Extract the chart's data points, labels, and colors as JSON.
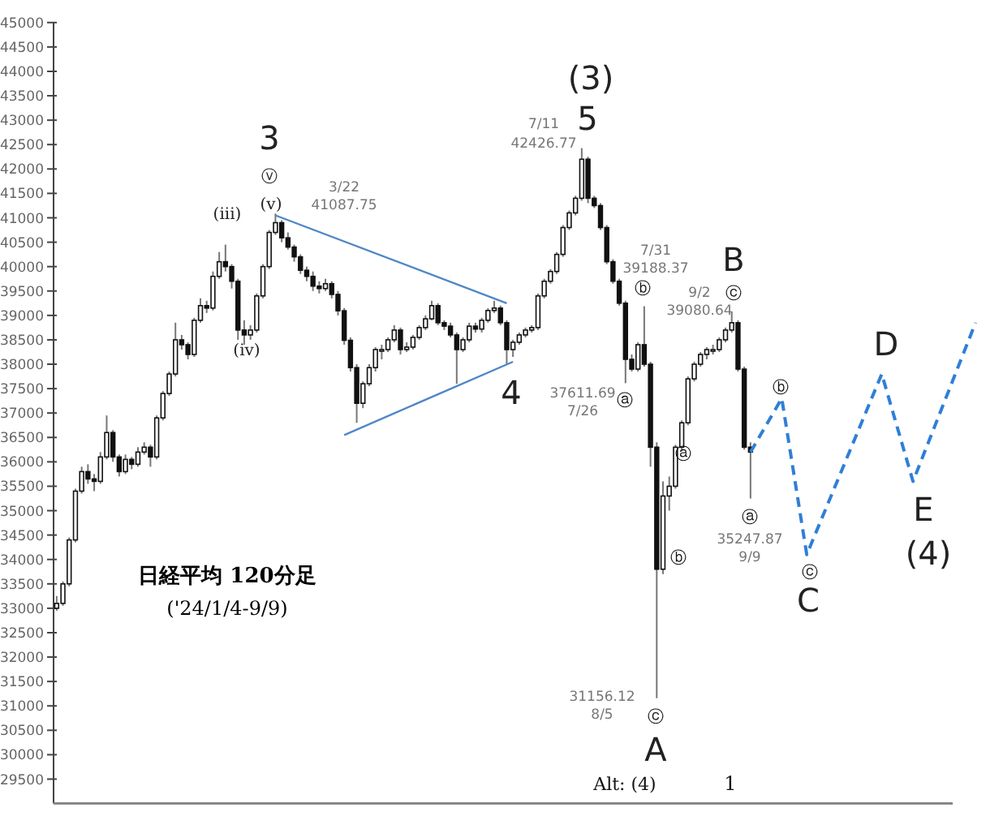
{
  "chart_data": {
    "type": "candlestick",
    "color": "#111111",
    "tick_labels": "y",
    "categories": [
      null,
      null,
      null,
      null,
      null,
      null,
      null,
      null,
      null,
      null,
      null,
      null,
      null,
      null,
      null,
      null,
      null,
      null,
      null,
      null,
      null,
      null,
      null,
      null,
      null,
      null,
      null,
      null,
      null,
      null,
      null,
      null,
      null,
      null,
      null,
      null,
      null,
      null,
      null,
      null,
      null,
      null,
      null,
      null,
      null,
      null,
      null,
      null,
      null,
      null,
      null,
      null,
      null,
      null,
      null,
      null,
      null,
      null,
      null,
      null,
      null,
      null,
      null,
      null,
      null,
      null,
      null,
      null,
      null,
      null,
      null,
      null,
      null,
      null,
      null,
      null,
      null,
      null,
      null,
      null,
      null,
      null,
      null,
      null,
      null,
      null,
      null,
      null,
      null,
      null,
      null,
      null,
      null,
      null,
      null,
      null,
      null,
      null,
      null,
      null,
      null,
      null,
      null,
      null,
      null,
      null,
      null,
      null,
      null,
      null,
      null,
      null,
      null,
      null,
      null,
      null,
      null,
      null,
      null,
      null,
      null,
      null,
      null,
      null,
      null,
      null,
      null,
      null,
      null,
      null,
      null,
      null,
      null,
      null,
      null,
      null,
      null,
      null,
      null,
      null,
      null,
      null,
      null,
      null,
      null,
      null,
      null,
      null
    ],
    "ylim": [
      29000,
      45000
    ],
    "yticks": [
      29500,
      30000,
      30500,
      31000,
      31500,
      32000,
      32500,
      33000,
      33500,
      34000,
      34500,
      35000,
      35500,
      36000,
      36500,
      37000,
      37500,
      38000,
      38500,
      39000,
      39500,
      40000,
      40500,
      41000,
      41500,
      42000,
      42500,
      43000,
      43500,
      44000,
      44500,
      45000
    ],
    "ohlc": [
      [
        33000,
        33250,
        32950,
        33100
      ],
      [
        33100,
        33550,
        33050,
        33500
      ],
      [
        33500,
        34450,
        33450,
        34400
      ],
      [
        34400,
        35450,
        34350,
        35400
      ],
      [
        35400,
        35900,
        35350,
        35800
      ],
      [
        35800,
        35950,
        35550,
        35650
      ],
      [
        35650,
        35750,
        35400,
        35600
      ],
      [
        35600,
        36200,
        35550,
        36100
      ],
      [
        36100,
        36950,
        36050,
        36600
      ],
      [
        36600,
        36650,
        36000,
        36100
      ],
      [
        36100,
        36150,
        35700,
        35800
      ],
      [
        35800,
        36150,
        35750,
        36050
      ],
      [
        36050,
        36100,
        35850,
        35950
      ],
      [
        35950,
        36300,
        35900,
        36200
      ],
      [
        36200,
        36400,
        36150,
        36300
      ],
      [
        36300,
        36350,
        35900,
        36100
      ],
      [
        36100,
        36950,
        36050,
        36900
      ],
      [
        36900,
        37450,
        36850,
        37400
      ],
      [
        37400,
        37850,
        37350,
        37800
      ],
      [
        37800,
        38850,
        37750,
        38500
      ],
      [
        38500,
        38600,
        38300,
        38400
      ],
      [
        38400,
        38450,
        38100,
        38200
      ],
      [
        38200,
        38950,
        38150,
        38900
      ],
      [
        38900,
        39350,
        38850,
        39200
      ],
      [
        39200,
        39300,
        39050,
        39150
      ],
      [
        39150,
        39900,
        39100,
        39800
      ],
      [
        39800,
        40300,
        39750,
        40100
      ],
      [
        40100,
        40450,
        39900,
        40000
      ],
      [
        40000,
        40050,
        39550,
        39700
      ],
      [
        39700,
        39750,
        38500,
        38700
      ],
      [
        38700,
        38900,
        38400,
        38600
      ],
      [
        38600,
        38800,
        38500,
        38700
      ],
      [
        38700,
        39450,
        38650,
        39400
      ],
      [
        39400,
        40050,
        39350,
        40000
      ],
      [
        40000,
        40750,
        39950,
        40700
      ],
      [
        40700,
        41087.75,
        40650,
        40900
      ],
      [
        40900,
        40950,
        40500,
        40590
      ],
      [
        40590,
        40700,
        40350,
        40400
      ],
      [
        40400,
        40450,
        40100,
        40200
      ],
      [
        40200,
        40250,
        39850,
        39925
      ],
      [
        39925,
        40000,
        39700,
        39800
      ],
      [
        39800,
        39900,
        39500,
        39600
      ],
      [
        39600,
        39700,
        39450,
        39550
      ],
      [
        39550,
        39750,
        39500,
        39650
      ],
      [
        39650,
        39700,
        39350,
        39430
      ],
      [
        39430,
        39500,
        39000,
        39095
      ],
      [
        39095,
        39150,
        38400,
        38490
      ],
      [
        38490,
        38550,
        37850,
        37930
      ],
      [
        37930,
        38000,
        36800,
        37200
      ],
      [
        37200,
        37650,
        37100,
        37600
      ],
      [
        37600,
        38000,
        37550,
        37930
      ],
      [
        37930,
        38350,
        37850,
        38300
      ],
      [
        38300,
        38400,
        38100,
        38300
      ],
      [
        38300,
        38550,
        38250,
        38500
      ],
      [
        38500,
        38800,
        38450,
        38700
      ],
      [
        38700,
        38750,
        38200,
        38300
      ],
      [
        38300,
        38450,
        38250,
        38350
      ],
      [
        38350,
        38600,
        38300,
        38550
      ],
      [
        38550,
        38800,
        38500,
        38750
      ],
      [
        38750,
        39000,
        38700,
        38930
      ],
      [
        38930,
        39300,
        38900,
        39200
      ],
      [
        39200,
        39250,
        38800,
        38850
      ],
      [
        38850,
        38900,
        38700,
        38780
      ],
      [
        38780,
        38850,
        38550,
        38600
      ],
      [
        38600,
        38650,
        37600,
        38300
      ],
      [
        38300,
        38550,
        38250,
        38500
      ],
      [
        38500,
        38850,
        38450,
        38780
      ],
      [
        38780,
        38850,
        38650,
        38720
      ],
      [
        38720,
        38950,
        38650,
        38900
      ],
      [
        38900,
        39150,
        38850,
        39100
      ],
      [
        39100,
        39300,
        39050,
        39150
      ],
      [
        39150,
        39200,
        38800,
        38850
      ],
      [
        38850,
        38900,
        38000,
        38300
      ],
      [
        38300,
        38500,
        38150,
        38450
      ],
      [
        38450,
        38650,
        38400,
        38600
      ],
      [
        38600,
        38750,
        38550,
        38700
      ],
      [
        38700,
        38800,
        38650,
        38750
      ],
      [
        38750,
        39450,
        38700,
        39400
      ],
      [
        39400,
        39750,
        39350,
        39700
      ],
      [
        39700,
        39950,
        39650,
        39900
      ],
      [
        39900,
        40300,
        39850,
        40250
      ],
      [
        40250,
        40850,
        40200,
        40800
      ],
      [
        40800,
        41150,
        40750,
        41100
      ],
      [
        41100,
        41450,
        41050,
        41400
      ],
      [
        41400,
        42426.77,
        41350,
        42200
      ],
      [
        42200,
        42250,
        41300,
        41400
      ],
      [
        41400,
        41450,
        41200,
        41250
      ],
      [
        41250,
        41300,
        40750,
        40800
      ],
      [
        40800,
        40850,
        40050,
        40100
      ],
      [
        40100,
        40150,
        39650,
        39700
      ],
      [
        39700,
        39750,
        39200,
        39250
      ],
      [
        39250,
        39300,
        37611.69,
        38100
      ],
      [
        38100,
        38200,
        37850,
        37900
      ],
      [
        37900,
        38450,
        37850,
        38400
      ],
      [
        38400,
        39188.37,
        37950,
        38000
      ],
      [
        38000,
        38050,
        35900,
        36300
      ],
      [
        36300,
        36400,
        31156.12,
        33800
      ],
      [
        33800,
        35600,
        33700,
        35300
      ],
      [
        35300,
        35700,
        35000,
        35500
      ],
      [
        35500,
        36350,
        35450,
        36300
      ],
      [
        36300,
        36850,
        36250,
        36800
      ],
      [
        36800,
        37750,
        36750,
        37700
      ],
      [
        37700,
        38050,
        37650,
        38000
      ],
      [
        38000,
        38250,
        37950,
        38200
      ],
      [
        38200,
        38350,
        38100,
        38300
      ],
      [
        38300,
        38400,
        38200,
        38300
      ],
      [
        38300,
        38550,
        38250,
        38500
      ],
      [
        38500,
        38750,
        38450,
        38700
      ],
      [
        38700,
        39080.64,
        38650,
        38850
      ],
      [
        38850,
        38900,
        37850,
        37900
      ],
      [
        37900,
        37950,
        36250,
        36300
      ],
      [
        36300,
        36400,
        35247.87,
        36200
      ],
      null,
      null,
      null,
      null,
      null,
      null,
      null,
      null,
      null,
      null,
      null,
      null,
      null,
      null,
      null,
      null,
      null,
      null,
      null,
      null,
      null,
      null,
      null,
      null,
      null,
      null,
      null,
      null,
      null,
      null,
      null,
      null,
      null,
      null,
      null,
      null
    ],
    "series": [
      {
        "type": "line",
        "color": "#4f87c7",
        "values": [
          null,
          null,
          null,
          null,
          null,
          null,
          null,
          null,
          null,
          null,
          null,
          null,
          null,
          null,
          null,
          null,
          null,
          null,
          null,
          null,
          null,
          null,
          null,
          null,
          null,
          null,
          null,
          null,
          null,
          null,
          null,
          null,
          null,
          null,
          null,
          41050,
          null,
          null,
          null,
          null,
          null,
          null,
          null,
          null,
          null,
          null,
          null,
          null,
          null,
          null,
          null,
          null,
          null,
          null,
          null,
          null,
          null,
          null,
          null,
          null,
          null,
          null,
          null,
          null,
          null,
          null,
          null,
          null,
          null,
          null,
          null,
          null,
          39250,
          null,
          null,
          null,
          null,
          null,
          null,
          null,
          null,
          null,
          null,
          null,
          null,
          null,
          null,
          null,
          null,
          null,
          null,
          null,
          null,
          null,
          null,
          null,
          null,
          null,
          null,
          null,
          null,
          null,
          null,
          null,
          null,
          null,
          null,
          null,
          null,
          null,
          null,
          null,
          null,
          null,
          null,
          null,
          null,
          null,
          null,
          null,
          null,
          null,
          null,
          null,
          null,
          null,
          null,
          null,
          null,
          null,
          null,
          null,
          null,
          null,
          null,
          null,
          null,
          null,
          null,
          null,
          null,
          null,
          null,
          null,
          null,
          null,
          null,
          null
        ]
      },
      {
        "type": "line",
        "color": "#4f87c7",
        "values": [
          null,
          null,
          null,
          null,
          null,
          null,
          null,
          null,
          null,
          null,
          null,
          null,
          null,
          null,
          null,
          null,
          null,
          null,
          null,
          null,
          null,
          null,
          null,
          null,
          null,
          null,
          null,
          null,
          null,
          null,
          null,
          null,
          null,
          null,
          null,
          null,
          null,
          null,
          null,
          null,
          null,
          null,
          null,
          null,
          null,
          null,
          36550,
          null,
          null,
          null,
          null,
          null,
          null,
          null,
          null,
          null,
          null,
          null,
          null,
          null,
          null,
          null,
          null,
          null,
          null,
          null,
          null,
          null,
          null,
          null,
          null,
          null,
          null,
          38050,
          null,
          null,
          null,
          null,
          null,
          null,
          null,
          null,
          null,
          null,
          null,
          null,
          null,
          null,
          null,
          null,
          null,
          null,
          null,
          null,
          null,
          null,
          null,
          null,
          null,
          null,
          null,
          null,
          null,
          null,
          null,
          null,
          null,
          null,
          null,
          null,
          null,
          null,
          null,
          null,
          null,
          null,
          null,
          null,
          null,
          null,
          null,
          null,
          null,
          null,
          null,
          null,
          null,
          null,
          null,
          null,
          null,
          null,
          null,
          null,
          null,
          null,
          null,
          null,
          null,
          null,
          null,
          null,
          null,
          null,
          null,
          null,
          null,
          null
        ]
      },
      {
        "type": "line",
        "color": "#2f7fd6",
        "line_style": "dashed",
        "values": [
          null,
          null,
          null,
          null,
          null,
          null,
          null,
          null,
          null,
          null,
          null,
          null,
          null,
          null,
          null,
          null,
          null,
          null,
          null,
          null,
          null,
          null,
          null,
          null,
          null,
          null,
          null,
          null,
          null,
          null,
          null,
          null,
          null,
          null,
          null,
          null,
          null,
          null,
          null,
          null,
          null,
          null,
          null,
          null,
          null,
          null,
          null,
          null,
          null,
          null,
          null,
          null,
          null,
          null,
          null,
          null,
          null,
          null,
          null,
          null,
          null,
          null,
          null,
          null,
          null,
          null,
          null,
          null,
          null,
          null,
          null,
          null,
          null,
          null,
          null,
          null,
          null,
          null,
          null,
          null,
          null,
          null,
          null,
          null,
          null,
          null,
          null,
          null,
          null,
          null,
          null,
          null,
          null,
          null,
          null,
          null,
          null,
          null,
          null,
          null,
          null,
          null,
          null,
          null,
          null,
          null,
          null,
          null,
          null,
          null,
          null,
          36200,
          null,
          null,
          null,
          null,
          37300,
          null,
          null,
          null,
          34100,
          null,
          null,
          null,
          null,
          null,
          null,
          null,
          null,
          null,
          null,
          null,
          37800,
          null,
          null,
          null,
          null,
          35600,
          null,
          null,
          null,
          null,
          null,
          null,
          null,
          null,
          null,
          38850
        ]
      }
    ],
    "annotations": [
      "3",
      "ⓥ",
      "(v)",
      "3/22",
      "41087.75",
      "(iii)",
      "(iv)",
      "4",
      "(3)",
      "5",
      "7/11",
      "42426.77",
      "7/31",
      "39188.37",
      "ⓑ",
      "37611.69",
      "7/26",
      "ⓐ",
      "ⓐ",
      "ⓑ",
      "31156.12",
      "8/5",
      "ⓒ",
      "A",
      "Alt: (4)",
      "1",
      "B",
      "9/2",
      "39080.64",
      "ⓒ",
      "ⓐ",
      "35247.87",
      "9/9",
      "ⓑ",
      "ⓒ",
      "C",
      "D",
      "E",
      "(4)",
      "日経平均 120分足",
      "('24/1/4-9/9)"
    ]
  }
}
